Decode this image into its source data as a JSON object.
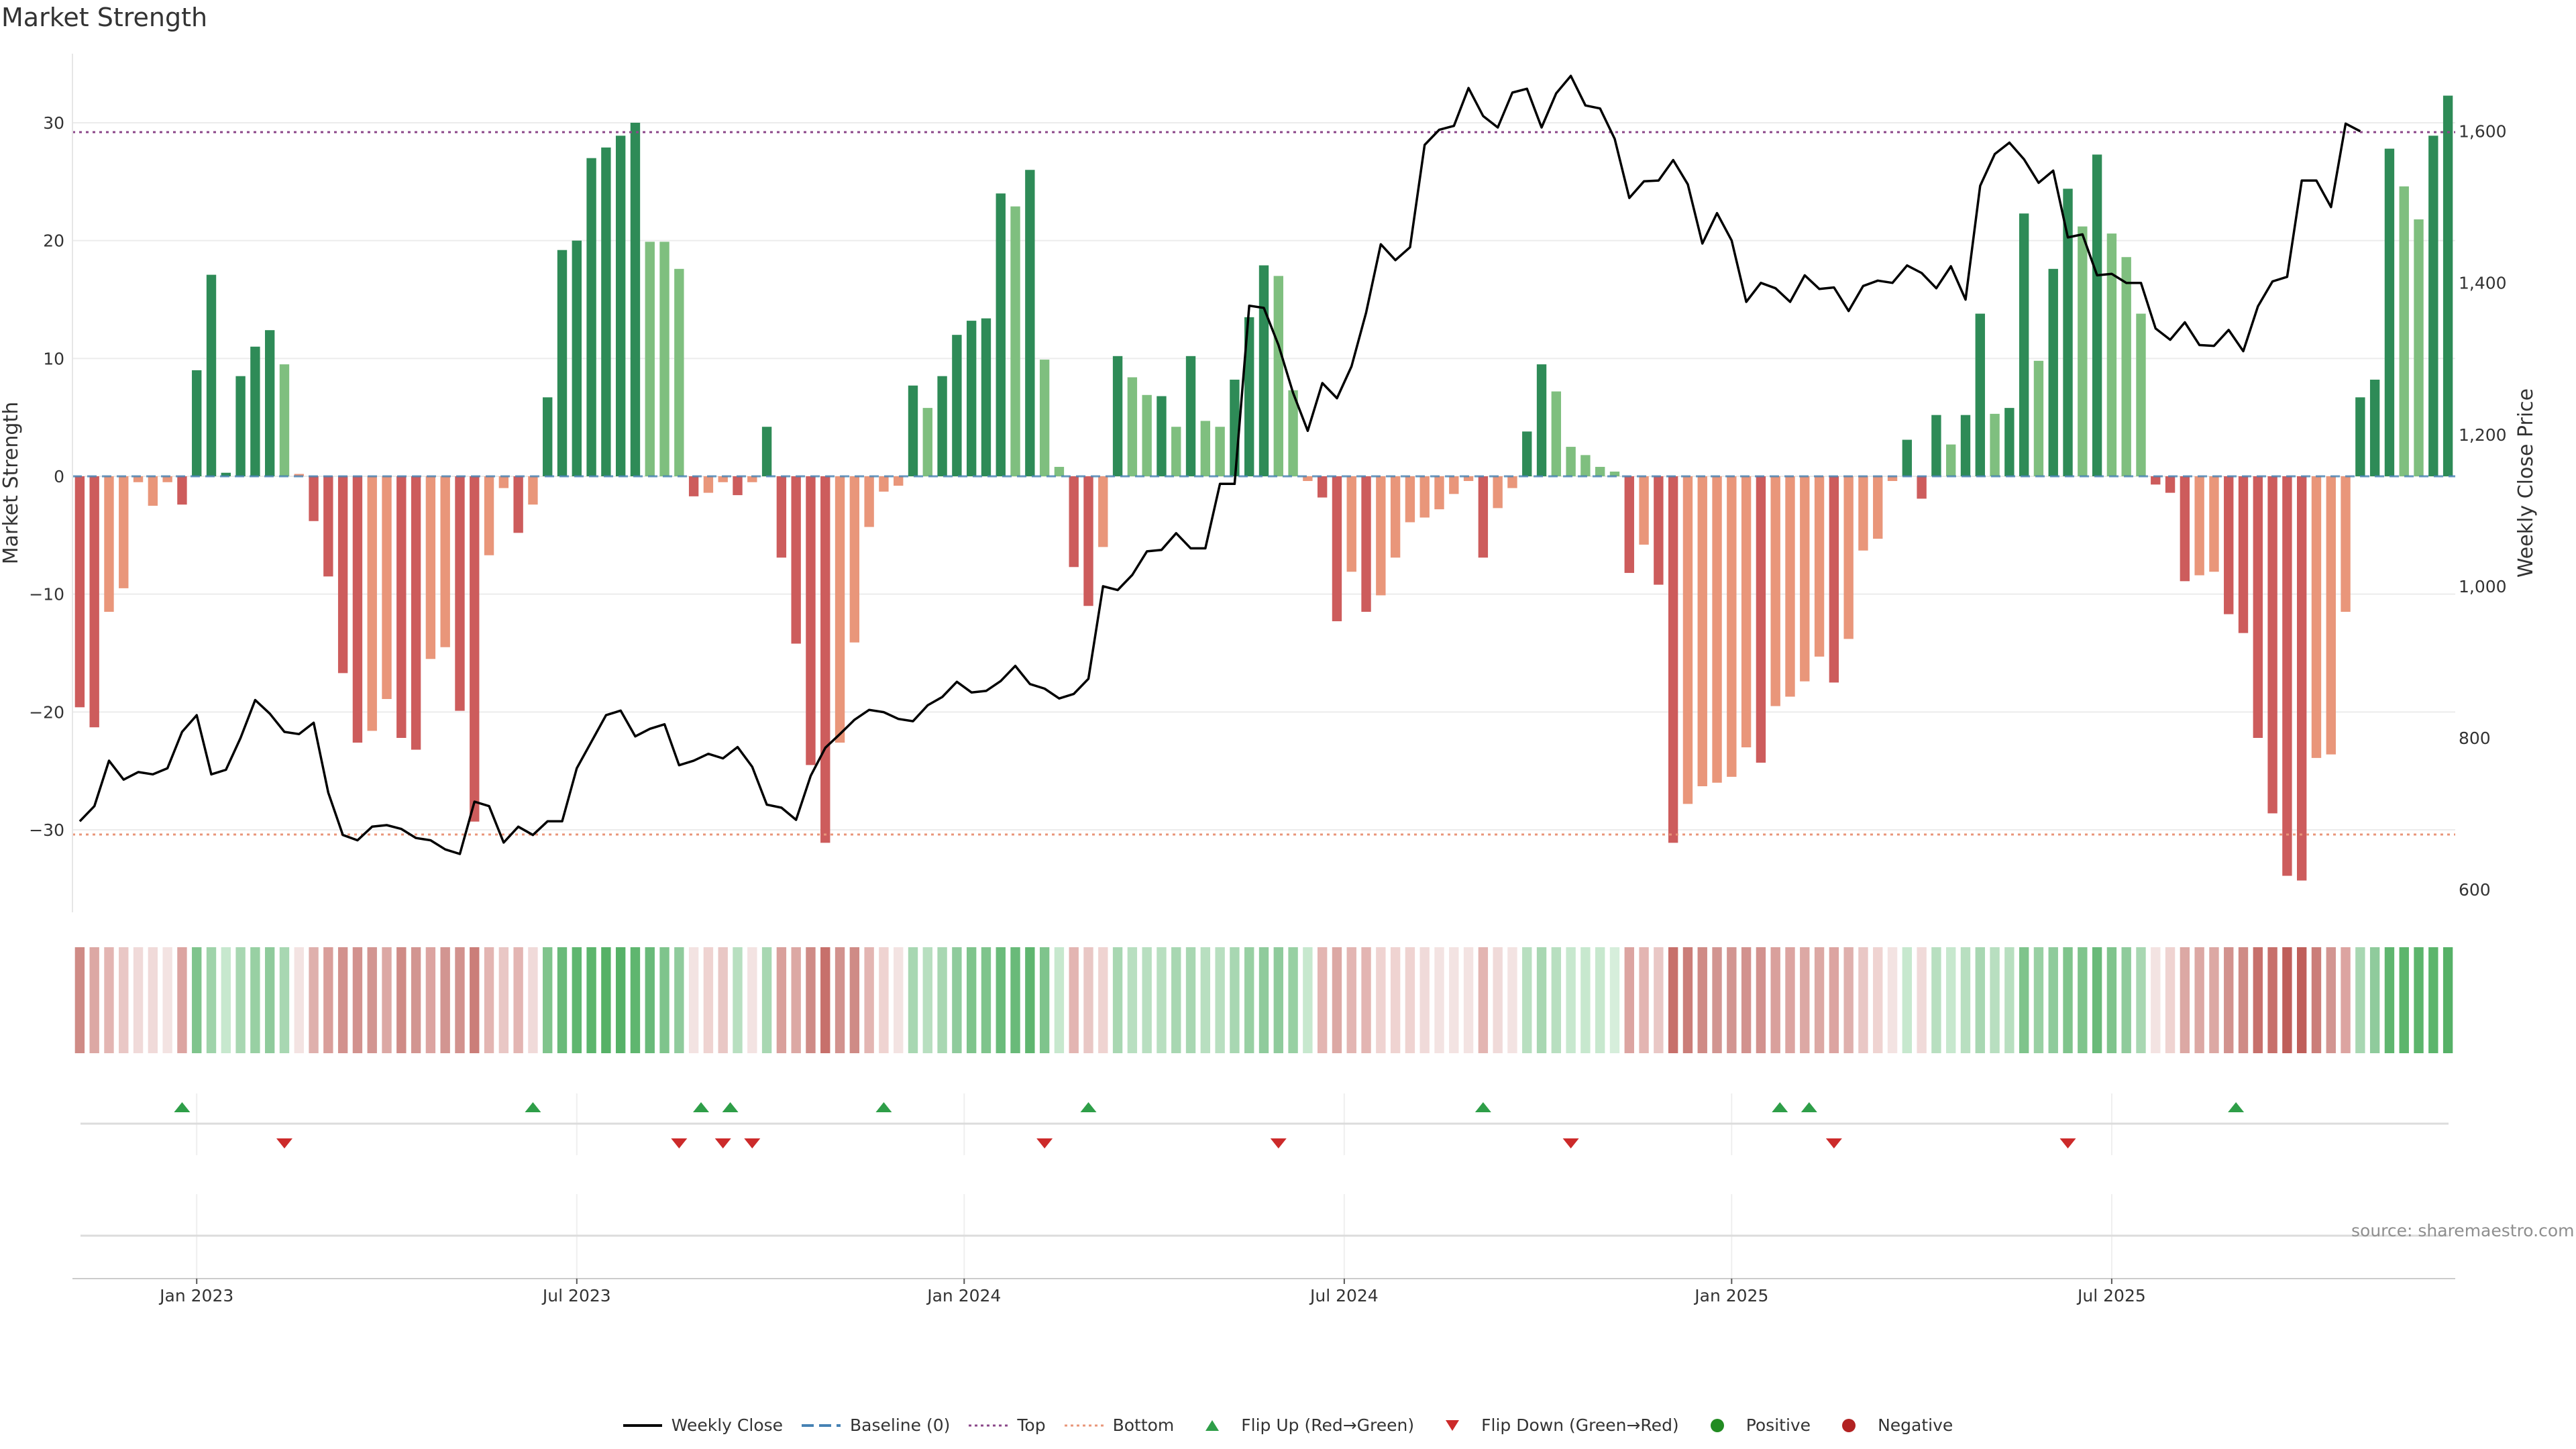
{
  "chart_data": {
    "type": "bar",
    "title": "Market Strength",
    "ylabel": "Market Strength",
    "y2label": "Weekly Close Price",
    "source": "source: sharemaestro.com",
    "ylim": [
      -37,
      37
    ],
    "y2lim": [
      570,
      1720
    ],
    "yticks": [
      -30,
      -20,
      -10,
      0,
      10,
      20,
      30
    ],
    "y2ticks": [
      600,
      800,
      1000,
      1200,
      1400,
      1600
    ],
    "y2tick_labels": [
      "600",
      "800",
      "1,000",
      "1,200",
      "1,400",
      "1,600"
    ],
    "top_level": 29.2,
    "bottom_level": -30.4,
    "x_months": [
      {
        "label": "Jan 2023",
        "week": 8.5
      },
      {
        "label": "Jul 2023",
        "week": 34.5
      },
      {
        "label": "Jan 2024",
        "week": 61
      },
      {
        "label": "Jul 2024",
        "week": 87
      },
      {
        "label": "Jan 2025",
        "week": 113.5
      },
      {
        "label": "Jul 2025",
        "week": 139.5
      }
    ],
    "strength": [
      -19.6,
      -21.3,
      -11.5,
      -9.5,
      -0.5,
      -2.5,
      -0.5,
      -2.4,
      9.0,
      17.1,
      0.3,
      8.5,
      11.0,
      12.4,
      9.5,
      0.2,
      -3.8,
      -8.5,
      -16.7,
      -22.6,
      -21.6,
      -18.9,
      -22.2,
      -23.2,
      -15.5,
      -14.5,
      -19.9,
      -29.3,
      -6.7,
      -1.0,
      -4.8,
      -2.4,
      6.7,
      19.2,
      20.0,
      27.0,
      27.9,
      28.9,
      30.0,
      19.9,
      19.9,
      17.6,
      -1.7,
      -1.4,
      -0.5,
      -1.6,
      -0.5,
      4.2,
      -6.9,
      -14.2,
      -24.5,
      -31.1,
      -22.6,
      -14.1,
      -4.3,
      -1.3,
      -0.8,
      7.7,
      5.8,
      8.5,
      12.0,
      13.2,
      13.4,
      24.0,
      22.9,
      26.0,
      9.9,
      0.8,
      -7.7,
      -11.0,
      -6.0,
      10.2,
      8.4,
      6.9,
      6.8,
      4.2,
      10.2,
      4.7,
      4.2,
      8.2,
      13.5,
      17.9,
      17.0,
      7.3,
      -0.4,
      -1.8,
      -12.3,
      -8.1,
      -11.5,
      -10.1,
      -6.9,
      -3.9,
      -3.5,
      -2.8,
      -1.5,
      -0.4,
      -6.9,
      -2.7,
      -1.0,
      3.8,
      9.5,
      7.2,
      2.5,
      1.8,
      0.8,
      0.4,
      -8.2,
      -5.8,
      -9.2,
      -31.1,
      -27.8,
      -26.3,
      -26.0,
      -25.5,
      -23.0,
      -24.3,
      -19.5,
      -18.7,
      -17.4,
      -15.3,
      -17.5,
      -13.8,
      -6.3,
      -5.3,
      -0.4,
      3.1,
      -1.9,
      5.2,
      2.7,
      5.2,
      13.8,
      5.3,
      5.8,
      22.3,
      9.8,
      17.6,
      24.4,
      21.2,
      27.3,
      20.6,
      18.6,
      13.8,
      -0.7,
      -1.4,
      -8.9,
      -8.4,
      -8.1,
      -11.7,
      -13.3,
      -22.2,
      -28.6,
      -33.9,
      -34.3,
      -23.9,
      -23.6,
      -11.5,
      6.7,
      8.2,
      27.8,
      24.6,
      21.8,
      28.9,
      32.3
    ],
    "strength_color": [
      "red",
      "red",
      "orange",
      "orange",
      "orange",
      "orange",
      "orange",
      "red",
      "green",
      "green",
      "green",
      "green",
      "green",
      "green",
      "lgreen",
      "orange",
      "red",
      "red",
      "red",
      "red",
      "orange",
      "orange",
      "red",
      "red",
      "orange",
      "orange",
      "red",
      "red",
      "orange",
      "orange",
      "red",
      "orange",
      "green",
      "green",
      "green",
      "green",
      "green",
      "green",
      "green",
      "lgreen",
      "lgreen",
      "lgreen",
      "red",
      "orange",
      "orange",
      "red",
      "orange",
      "green",
      "red",
      "red",
      "red",
      "red",
      "orange",
      "orange",
      "orange",
      "orange",
      "orange",
      "green",
      "lgreen",
      "green",
      "green",
      "green",
      "green",
      "green",
      "lgreen",
      "green",
      "lgreen",
      "lgreen",
      "red",
      "red",
      "orange",
      "green",
      "lgreen",
      "lgreen",
      "green",
      "lgreen",
      "green",
      "lgreen",
      "lgreen",
      "green",
      "green",
      "green",
      "lgreen",
      "lgreen",
      "orange",
      "red",
      "red",
      "orange",
      "red",
      "orange",
      "orange",
      "orange",
      "orange",
      "orange",
      "orange",
      "orange",
      "red",
      "orange",
      "orange",
      "green",
      "green",
      "lgreen",
      "lgreen",
      "lgreen",
      "lgreen",
      "lgreen",
      "red",
      "orange",
      "red",
      "red",
      "orange",
      "orange",
      "orange",
      "orange",
      "orange",
      "red",
      "orange",
      "orange",
      "orange",
      "orange",
      "red",
      "orange",
      "orange",
      "orange",
      "orange",
      "green",
      "red",
      "green",
      "lgreen",
      "green",
      "green",
      "lgreen",
      "green",
      "green",
      "lgreen",
      "green",
      "green",
      "lgreen",
      "green",
      "lgreen",
      "lgreen",
      "lgreen",
      "red",
      "red",
      "red",
      "orange",
      "orange",
      "red",
      "red",
      "red",
      "red",
      "red",
      "red",
      "orange",
      "orange",
      "orange",
      "green",
      "green",
      "green",
      "lgreen",
      "lgreen",
      "green",
      "green"
    ],
    "weekly_close": [
      690,
      710,
      770,
      745,
      755,
      752,
      760,
      808,
      830,
      752,
      758,
      800,
      850,
      832,
      808,
      805,
      820,
      728,
      672,
      665,
      683,
      685,
      680,
      668,
      665,
      653,
      647,
      716,
      710,
      662,
      683,
      672,
      690,
      690,
      760,
      795,
      830,
      836,
      802,
      812,
      818,
      764,
      770,
      779,
      773,
      788,
      762,
      712,
      708,
      692,
      750,
      787,
      805,
      824,
      837,
      834,
      825,
      822,
      843,
      854,
      874,
      860,
      862,
      875,
      895,
      871,
      865,
      852,
      858,
      878,
      1000,
      995,
      1015,
      1046,
      1048,
      1070,
      1050,
      1050,
      1135,
      1135,
      1370,
      1367,
      1318,
      1255,
      1205,
      1268,
      1248,
      1290,
      1361,
      1451,
      1430,
      1447,
      1582,
      1602,
      1607,
      1657,
      1620,
      1605,
      1651,
      1656,
      1605,
      1650,
      1673,
      1634,
      1630,
      1590,
      1512,
      1534,
      1535,
      1562,
      1530,
      1452,
      1492,
      1456,
      1375,
      1400,
      1393,
      1375,
      1410,
      1392,
      1394,
      1363,
      1396,
      1403,
      1400,
      1423,
      1413,
      1393,
      1422,
      1378,
      1528,
      1570,
      1585,
      1563,
      1532,
      1548,
      1460,
      1464,
      1410,
      1412,
      1400,
      1400,
      1340,
      1325,
      1348,
      1318,
      1317,
      1338,
      1310,
      1369,
      1402,
      1408,
      1535,
      1535,
      1500,
      1610,
      1600
    ],
    "heat_colors": [
      "#cf8b86",
      "#dca8a4",
      "#e3b5b2",
      "#e9c7c5",
      "#f0dad9",
      "#f0dad9",
      "#f3e3e2",
      "#dca4a1",
      "#7fc48c",
      "#9fd3aa",
      "#c7e8ce",
      "#a8d7b2",
      "#98d0a3",
      "#8fcb9c",
      "#a8d7b2",
      "#f3e3e2",
      "#dfb0ad",
      "#d99e9a",
      "#d2928e",
      "#d2928e",
      "#d29591",
      "#dca8a4",
      "#cf8b86",
      "#d29591",
      "#dca4a1",
      "#d29591",
      "#d2928e",
      "#cb7e79",
      "#e3b5b2",
      "#e9c7c5",
      "#e3b5b2",
      "#f0dad9",
      "#7fc48c",
      "#69ba79",
      "#5fb66f",
      "#5cb56c",
      "#56b167",
      "#56b167",
      "#5fb66f",
      "#69ba79",
      "#7fc48c",
      "#8fcb9c",
      "#f3e3e2",
      "#efd3d1",
      "#e9c7c5",
      "#b8dfc0",
      "#f3e3e2",
      "#a8d7b2",
      "#d9a09c",
      "#dca8a4",
      "#cf8b86",
      "#c7706b",
      "#d2928e",
      "#cf8b86",
      "#e3b5b2",
      "#efd3d1",
      "#f3e3e2",
      "#a8d7b2",
      "#b8dfc0",
      "#a8d7b2",
      "#8fcb9c",
      "#7fc48c",
      "#7fc48c",
      "#6abb7a",
      "#69ba79",
      "#5fb66f",
      "#7fc48c",
      "#c7e8ce",
      "#e3b5b2",
      "#e9c7c5",
      "#efd3d1",
      "#a8d7b2",
      "#b8dfc0",
      "#b8dfc0",
      "#b8dfc0",
      "#a8d7b2",
      "#a8d7b2",
      "#b8dfc0",
      "#b8dfc0",
      "#a8d7b2",
      "#98d0a3",
      "#8fcb9c",
      "#8fcb9c",
      "#98d0a3",
      "#c7e8ce",
      "#e3b5b2",
      "#dca8a4",
      "#e3b5b2",
      "#e3b5b2",
      "#efd3d1",
      "#efd3d1",
      "#efd3d1",
      "#f0dad9",
      "#f3e3e2",
      "#f3e3e2",
      "#f3e3e2",
      "#e3b5b2",
      "#f0dad9",
      "#f3e3e2",
      "#b8dfc0",
      "#a8d7b2",
      "#b8dfc0",
      "#c7e8ce",
      "#c7e8ce",
      "#c7e8ce",
      "#d6eedb",
      "#dca4a1",
      "#e3b5b2",
      "#e9c7c5",
      "#c7706b",
      "#cb7e79",
      "#cf8b86",
      "#d29591",
      "#d29591",
      "#d2928e",
      "#d2928e",
      "#d9a09c",
      "#dca4a1",
      "#dca8a4",
      "#dca8a4",
      "#dca4a1",
      "#dfb0ad",
      "#e9c7c5",
      "#efd3d1",
      "#f3e3e2",
      "#c7e8ce",
      "#f0dad9",
      "#b8dfc0",
      "#c7e8ce",
      "#b8dfc0",
      "#a8d7b2",
      "#b8dfc0",
      "#b8dfc0",
      "#7fc48c",
      "#98d0a3",
      "#8fcb9c",
      "#7fc48c",
      "#7fc48c",
      "#69ba79",
      "#7fc48c",
      "#8fcb9c",
      "#a8d7b2",
      "#f3e3e2",
      "#efd3d1",
      "#dca8a4",
      "#dca8a4",
      "#dca8a4",
      "#d2928e",
      "#cf8b86",
      "#c7706b",
      "#c7706b",
      "#bf5f5a",
      "#bf5f5a",
      "#cb7e79",
      "#d29591",
      "#dca4a1",
      "#a8d7b2",
      "#8fcb9c",
      "#5fb66f",
      "#5cb56c",
      "#5cb56c",
      "#5cb56c",
      "#56b167"
    ],
    "flips_up": [
      7.5,
      31.5,
      43,
      45,
      55.5,
      69.5,
      96.5,
      116.8,
      118.8,
      148
    ],
    "flips_down": [
      14.5,
      41.5,
      44.5,
      46.5,
      66.5,
      82.5,
      102.5,
      120.5,
      136.5
    ],
    "colors": {
      "green": "#2e8b57",
      "light_green": "#7fbf7f",
      "red": "#cd5c5c",
      "orange": "#e9967a",
      "baseline": "#4682b4",
      "top": "#8b4789",
      "bottom": "#e9967a",
      "flip_up": "#2e9e48",
      "flip_down": "#cc2a2a",
      "positive": "#228b22",
      "negative": "#b22222"
    },
    "legend": [
      {
        "label": "Weekly Close",
        "symbol": "line"
      },
      {
        "label": "Baseline (0)",
        "symbol": "dash"
      },
      {
        "label": "Top",
        "symbol": "dot-purple"
      },
      {
        "label": "Bottom",
        "symbol": "dot-orange"
      },
      {
        "label": "Flip Up (Red→Green)",
        "symbol": "tri-up"
      },
      {
        "label": "Flip Down (Green→Red)",
        "symbol": "tri-down"
      },
      {
        "label": "Positive",
        "symbol": "dot-green"
      },
      {
        "label": "Negative",
        "symbol": "dot-red"
      }
    ],
    "legend_position": "bottom-center"
  }
}
